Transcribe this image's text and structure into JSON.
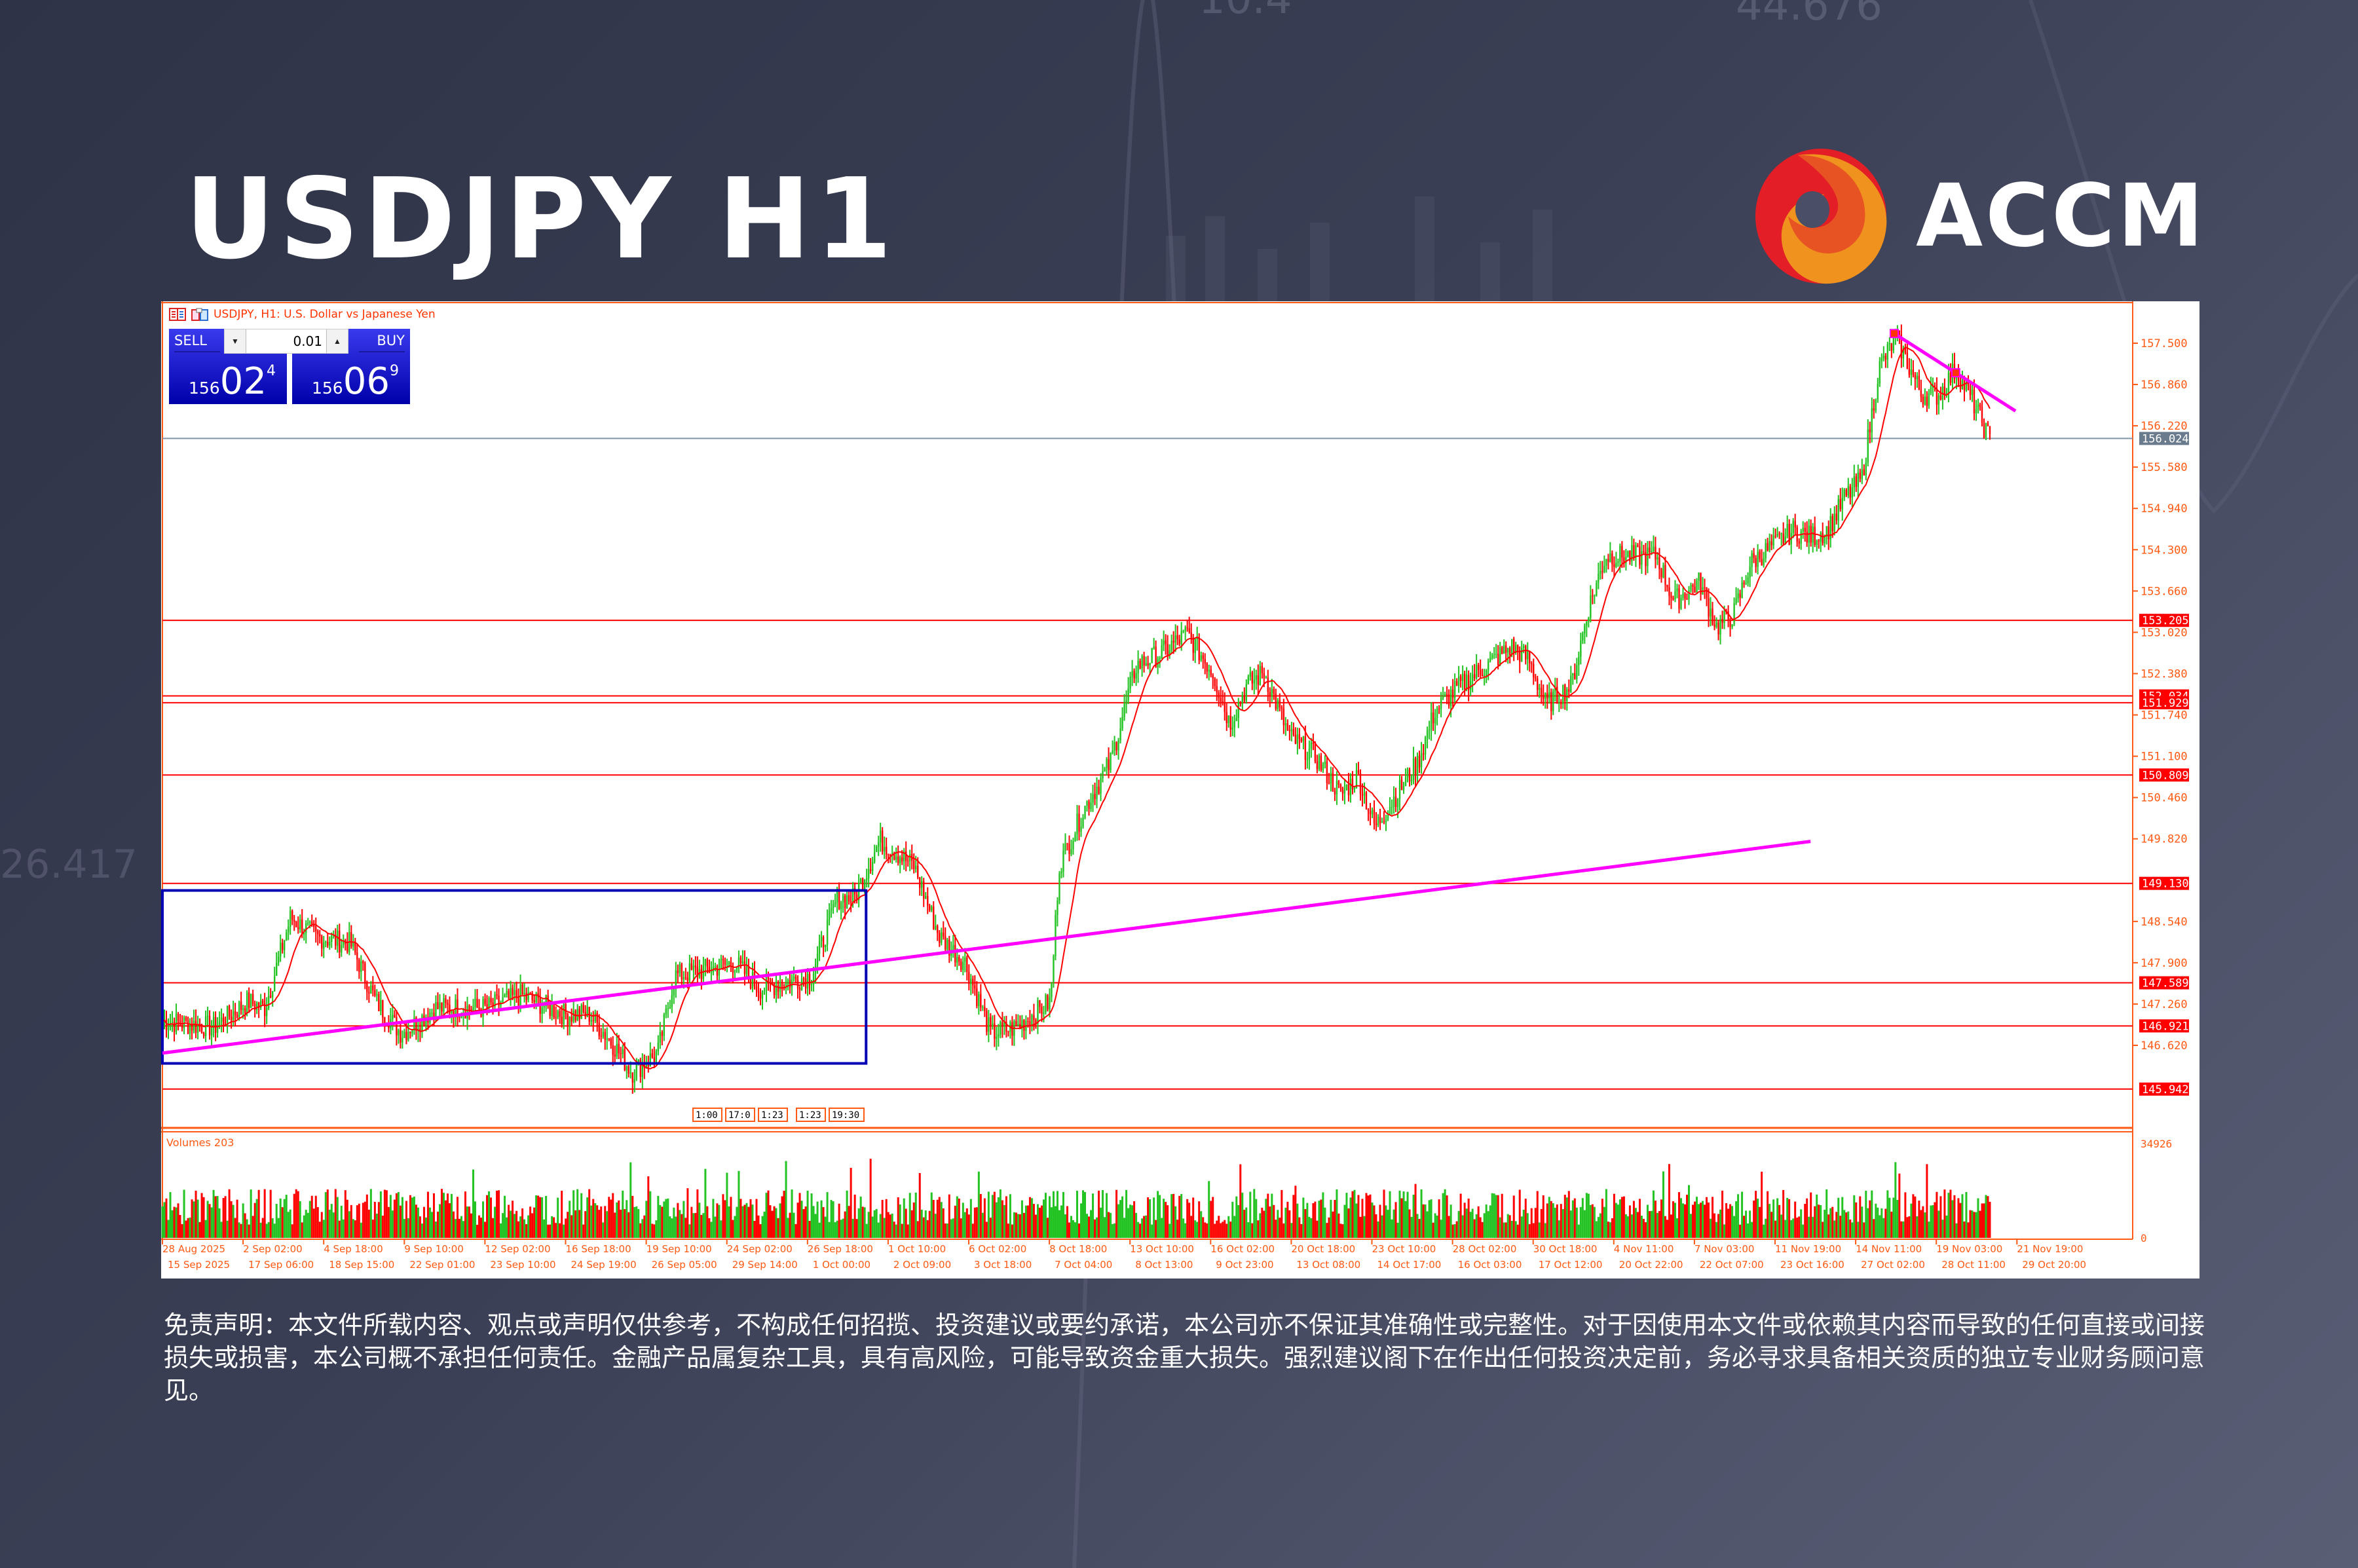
{
  "header": {
    "title": "USDJPY H1",
    "brand": "ACCM",
    "brand_colors": {
      "red": "#e31e26",
      "orange_red": "#e85324",
      "orange": "#f0921e"
    }
  },
  "chart_window": {
    "caption": "USDJPY, H1:  U.S. Dollar vs Japanese Yen",
    "trade_panel": {
      "sell_label": "SELL",
      "buy_label": "BUY",
      "lot_value": "0.01",
      "lot_down_icon": "triangle-down",
      "lot_up_icon": "triangle-up",
      "sell_price": {
        "prefix": "156",
        "big": "02",
        "sup": "4"
      },
      "buy_price": {
        "prefix": "156",
        "big": "06",
        "sup": "9"
      }
    },
    "volume_label": "Volumes 203",
    "volume_axis": {
      "max": "34926",
      "min": "0"
    },
    "time_markers": [
      "1:00",
      "17:0",
      "1:23",
      "1:23",
      "19:30"
    ]
  },
  "colors": {
    "axis": "#ff5a14",
    "bull": "#22c322",
    "bear": "#ff0000",
    "ma": "#ff0000",
    "trendline": "#ff00ff",
    "range_box": "#0000b4",
    "hline": "#ff0000",
    "bid_line": "#8093a8",
    "current_price_bg": "#6b7b8e"
  },
  "chart_data": {
    "type": "candlestick",
    "title": "USDJPY, H1: U.S. Dollar vs Japanese Yen",
    "xlabel": "",
    "ylabel": "",
    "ylim": [
      145.6,
      158.1
    ],
    "grid": false,
    "y_ticks": [
      "157.500",
      "156.860",
      "156.220",
      "155.580",
      "154.940",
      "154.300",
      "153.660",
      "153.020",
      "152.380",
      "151.740",
      "151.100",
      "150.460",
      "149.820",
      "148.540",
      "147.900",
      "147.260",
      "146.620"
    ],
    "current_price": "156.024",
    "horizontal_levels": [
      "153.205",
      "152.034",
      "151.929",
      "150.809",
      "149.130",
      "147.589",
      "146.921",
      "145.942"
    ],
    "x_ticks_top": [
      "28 Aug 2025",
      "2 Sep 02:00",
      "4 Sep 18:00",
      "9 Sep 10:00",
      "12 Sep 02:00",
      "16 Sep 18:00",
      "19 Sep 10:00",
      "24 Sep 02:00",
      "26 Sep 18:00",
      "1 Oct 10:00",
      "6 Oct 02:00",
      "8 Oct 18:00",
      "13 Oct 10:00",
      "16 Oct 02:00",
      "20 Oct 18:00",
      "23 Oct 10:00",
      "28 Oct 02:00",
      "30 Oct 18:00",
      "4 Nov 11:00",
      "7 Nov 03:00",
      "11 Nov 19:00",
      "14 Nov 11:00",
      "19 Nov 03:00",
      "21 Nov 19:00"
    ],
    "x_ticks_bottom": [
      "15 Sep 2025",
      "17 Sep 06:00",
      "18 Sep 15:00",
      "22 Sep 01:00",
      "23 Sep 10:00",
      "24 Sep 19:00",
      "26 Sep 05:00",
      "29 Sep 14:00",
      "1 Oct 00:00",
      "2 Oct 09:00",
      "3 Oct 18:00",
      "7 Oct 04:00",
      "8 Oct 13:00",
      "9 Oct 23:00",
      "13 Oct 08:00",
      "14 Oct 17:00",
      "16 Oct 03:00",
      "17 Oct 12:00",
      "20 Oct 22:00",
      "22 Oct 07:00",
      "23 Oct 16:00",
      "27 Oct 02:00",
      "28 Oct 11:00",
      "29 Oct 20:00"
    ],
    "price_path": {
      "description": "Approximate closing-price waypoints (x as fraction of plot width 0-1, price)",
      "points": [
        [
          0.0,
          147.0
        ],
        [
          0.03,
          146.9
        ],
        [
          0.05,
          147.3
        ],
        [
          0.06,
          147.2
        ],
        [
          0.075,
          148.6
        ],
        [
          0.09,
          148.3
        ],
        [
          0.11,
          148.2
        ],
        [
          0.125,
          147.3
        ],
        [
          0.14,
          146.8
        ],
        [
          0.16,
          147.2
        ],
        [
          0.19,
          147.2
        ],
        [
          0.21,
          147.4
        ],
        [
          0.235,
          147.1
        ],
        [
          0.25,
          147.1
        ],
        [
          0.265,
          146.6
        ],
        [
          0.275,
          146.2
        ],
        [
          0.29,
          146.5
        ],
        [
          0.3,
          147.7
        ],
        [
          0.32,
          147.8
        ],
        [
          0.335,
          147.9
        ],
        [
          0.35,
          147.5
        ],
        [
          0.365,
          147.6
        ],
        [
          0.38,
          147.7
        ],
        [
          0.395,
          148.9
        ],
        [
          0.405,
          148.9
        ],
        [
          0.42,
          149.8
        ],
        [
          0.44,
          149.4
        ],
        [
          0.455,
          148.3
        ],
        [
          0.47,
          147.9
        ],
        [
          0.485,
          146.8
        ],
        [
          0.5,
          146.9
        ],
        [
          0.51,
          147.1
        ],
        [
          0.52,
          147.3
        ],
        [
          0.525,
          149.4
        ],
        [
          0.54,
          150.3
        ],
        [
          0.555,
          151.0
        ],
        [
          0.57,
          152.5
        ],
        [
          0.585,
          152.7
        ],
        [
          0.6,
          153.0
        ],
        [
          0.615,
          152.4
        ],
        [
          0.625,
          151.6
        ],
        [
          0.635,
          152.2
        ],
        [
          0.645,
          152.4
        ],
        [
          0.66,
          151.4
        ],
        [
          0.675,
          151.1
        ],
        [
          0.69,
          150.5
        ],
        [
          0.7,
          150.8
        ],
        [
          0.71,
          150.0
        ],
        [
          0.72,
          150.4
        ],
        [
          0.735,
          151.0
        ],
        [
          0.745,
          151.8
        ],
        [
          0.76,
          152.2
        ],
        [
          0.775,
          152.5
        ],
        [
          0.79,
          152.8
        ],
        [
          0.8,
          152.6
        ],
        [
          0.81,
          151.9
        ],
        [
          0.825,
          152.2
        ],
        [
          0.835,
          153.4
        ],
        [
          0.845,
          154.2
        ],
        [
          0.86,
          154.2
        ],
        [
          0.875,
          154.2
        ],
        [
          0.885,
          153.5
        ],
        [
          0.9,
          153.8
        ],
        [
          0.91,
          153.1
        ],
        [
          0.92,
          153.3
        ],
        [
          0.93,
          154.1
        ],
        [
          0.94,
          154.3
        ],
        [
          0.955,
          154.6
        ],
        [
          0.965,
          154.5
        ],
        [
          0.975,
          154.6
        ],
        [
          0.985,
          155.1
        ],
        [
          0.995,
          155.4
        ],
        [
          1.005,
          157.1
        ],
        [
          1.015,
          157.6
        ],
        [
          1.03,
          156.7
        ],
        [
          1.04,
          156.7
        ],
        [
          1.05,
          157.1
        ],
        [
          1.06,
          156.6
        ],
        [
          1.07,
          156.0
        ]
      ]
    },
    "annotations": [
      {
        "type": "rectangle",
        "label": "range box",
        "x_start": 0.0,
        "x_end": 0.412,
        "price_top": 149.02,
        "price_bottom": 146.34
      },
      {
        "type": "trendline",
        "label": "rising trendline",
        "from": [
          0.0,
          146.5
        ],
        "to": [
          0.965,
          149.78
        ]
      },
      {
        "type": "trendline",
        "label": "falling trendline",
        "from": [
          1.014,
          157.65
        ],
        "to": [
          1.085,
          156.45
        ]
      }
    ],
    "series": [
      {
        "name": "USDJPY H1 candles",
        "type": "candlestick"
      },
      {
        "name": "Moving average",
        "type": "line",
        "color": "#ff0000"
      },
      {
        "name": "Volumes",
        "type": "histogram",
        "max": 34926
      }
    ]
  },
  "disclaimer": "免责声明：本文件所载内容、观点或声明仅供参考，不构成任何招揽、投资建议或要约承诺，本公司亦不保证其准确性或完整性。对于因使用本文件或依赖其内容而导致的任何直接或间接损失或损害，本公司概不承担任何责任。金融产品属复杂工具，具有高风险，可能导致资金重大损失。强烈建议阁下在作出任何投资决定前，务必寻求具备相关资质的独立专业财务顾问意见。"
}
